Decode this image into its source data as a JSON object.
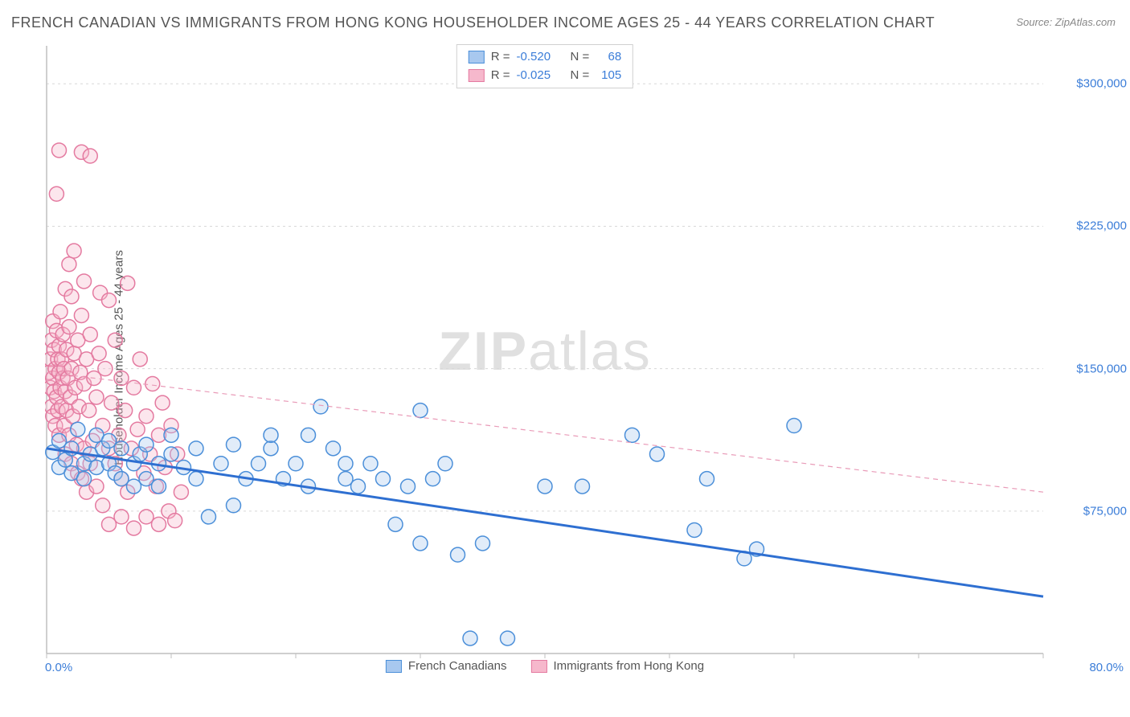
{
  "title": "FRENCH CANADIAN VS IMMIGRANTS FROM HONG KONG HOUSEHOLDER INCOME AGES 25 - 44 YEARS CORRELATION CHART",
  "source": "Source: ZipAtlas.com",
  "watermark_a": "ZIP",
  "watermark_b": "atlas",
  "y_axis_label": "Householder Income Ages 25 - 44 years",
  "chart": {
    "type": "scatter",
    "background_color": "#ffffff",
    "grid_color": "#d8d8d8",
    "axis_color": "#bfbfbf",
    "xlim": [
      0,
      80
    ],
    "ylim": [
      0,
      320000
    ],
    "x_ticks": [
      0,
      10,
      20,
      30,
      40,
      50,
      60,
      70,
      80
    ],
    "x_tick_labels": {
      "0": "0.0%",
      "80": "80.0%"
    },
    "y_ticks": [
      75000,
      150000,
      225000,
      300000
    ],
    "y_tick_labels": [
      "$75,000",
      "$150,000",
      "$225,000",
      "$300,000"
    ],
    "label_fontsize": 15,
    "label_color": "#3b7dd8",
    "marker_radius": 9,
    "marker_stroke_width": 1.5,
    "marker_fill_opacity": 0.35,
    "trendline_width_blue": 3,
    "trendline_width_pink": 1.2,
    "trendline_pink_dash": "6,5"
  },
  "series": [
    {
      "key": "french_canadians",
      "label": "French Canadians",
      "fill": "#a8c8ef",
      "stroke": "#4b8fd9",
      "trend_stroke": "#2e6fd1",
      "R": "-0.520",
      "N": "68",
      "trendline": {
        "x1": 0,
        "y1": 108000,
        "x2": 80,
        "y2": 30000
      },
      "points": [
        [
          0.5,
          106000
        ],
        [
          1,
          98000
        ],
        [
          1,
          112000
        ],
        [
          1.5,
          102000
        ],
        [
          2,
          108000
        ],
        [
          2,
          95000
        ],
        [
          2.5,
          118000
        ],
        [
          3,
          100000
        ],
        [
          3,
          92000
        ],
        [
          3.5,
          105000
        ],
        [
          4,
          115000
        ],
        [
          4,
          98000
        ],
        [
          4.5,
          108000
        ],
        [
          5,
          112000
        ],
        [
          5,
          100000
        ],
        [
          5.5,
          95000
        ],
        [
          6,
          108000
        ],
        [
          6,
          92000
        ],
        [
          7,
          100000
        ],
        [
          7,
          88000
        ],
        [
          7.5,
          105000
        ],
        [
          8,
          110000
        ],
        [
          8,
          92000
        ],
        [
          9,
          100000
        ],
        [
          9,
          88000
        ],
        [
          10,
          105000
        ],
        [
          10,
          115000
        ],
        [
          11,
          98000
        ],
        [
          12,
          108000
        ],
        [
          12,
          92000
        ],
        [
          13,
          72000
        ],
        [
          14,
          100000
        ],
        [
          15,
          110000
        ],
        [
          15,
          78000
        ],
        [
          16,
          92000
        ],
        [
          17,
          100000
        ],
        [
          18,
          108000
        ],
        [
          18,
          115000
        ],
        [
          19,
          92000
        ],
        [
          20,
          100000
        ],
        [
          21,
          115000
        ],
        [
          21,
          88000
        ],
        [
          22,
          130000
        ],
        [
          23,
          108000
        ],
        [
          24,
          92000
        ],
        [
          24,
          100000
        ],
        [
          25,
          88000
        ],
        [
          26,
          100000
        ],
        [
          27,
          92000
        ],
        [
          28,
          68000
        ],
        [
          29,
          88000
        ],
        [
          30,
          128000
        ],
        [
          30,
          58000
        ],
        [
          31,
          92000
        ],
        [
          32,
          100000
        ],
        [
          33,
          52000
        ],
        [
          34,
          8000
        ],
        [
          35,
          58000
        ],
        [
          37,
          8000
        ],
        [
          40,
          88000
        ],
        [
          43,
          88000
        ],
        [
          47,
          115000
        ],
        [
          49,
          105000
        ],
        [
          52,
          65000
        ],
        [
          53,
          92000
        ],
        [
          56,
          50000
        ],
        [
          57,
          55000
        ],
        [
          60,
          120000
        ]
      ]
    },
    {
      "key": "immigrants_hk",
      "label": "Immigrants from Hong Kong",
      "fill": "#f6b8cc",
      "stroke": "#e47aa0",
      "trend_stroke": "#e99bb8",
      "R": "-0.025",
      "N": "105",
      "trendline": {
        "x1": 0,
        "y1": 148000,
        "x2": 80,
        "y2": 85000
      },
      "points": [
        [
          0.2,
          148000
        ],
        [
          0.3,
          155000
        ],
        [
          0.3,
          140000
        ],
        [
          0.4,
          165000
        ],
        [
          0.4,
          130000
        ],
        [
          0.5,
          175000
        ],
        [
          0.5,
          125000
        ],
        [
          0.5,
          145000
        ],
        [
          0.6,
          160000
        ],
        [
          0.6,
          138000
        ],
        [
          0.7,
          150000
        ],
        [
          0.7,
          120000
        ],
        [
          0.8,
          170000
        ],
        [
          0.8,
          135000
        ],
        [
          0.8,
          242000
        ],
        [
          0.9,
          155000
        ],
        [
          0.9,
          128000
        ],
        [
          1,
          148000
        ],
        [
          1,
          162000
        ],
        [
          1,
          115000
        ],
        [
          1,
          265000
        ],
        [
          1.1,
          140000
        ],
        [
          1.1,
          180000
        ],
        [
          1.2,
          130000
        ],
        [
          1.2,
          155000
        ],
        [
          1.3,
          145000
        ],
        [
          1.3,
          168000
        ],
        [
          1.4,
          120000
        ],
        [
          1.4,
          150000
        ],
        [
          1.5,
          138000
        ],
        [
          1.5,
          192000
        ],
        [
          1.5,
          105000
        ],
        [
          1.6,
          160000
        ],
        [
          1.6,
          128000
        ],
        [
          1.7,
          145000
        ],
        [
          1.8,
          115000
        ],
        [
          1.8,
          172000
        ],
        [
          1.8,
          205000
        ],
        [
          1.9,
          135000
        ],
        [
          2,
          150000
        ],
        [
          2,
          100000
        ],
        [
          2,
          188000
        ],
        [
          2.1,
          125000
        ],
        [
          2.2,
          158000
        ],
        [
          2.2,
          212000
        ],
        [
          2.3,
          140000
        ],
        [
          2.4,
          110000
        ],
        [
          2.5,
          165000
        ],
        [
          2.5,
          95000
        ],
        [
          2.6,
          130000
        ],
        [
          2.7,
          148000
        ],
        [
          2.8,
          92000
        ],
        [
          2.8,
          178000
        ],
        [
          2.8,
          264000
        ],
        [
          3,
          142000
        ],
        [
          3,
          108000
        ],
        [
          3,
          196000
        ],
        [
          3.2,
          155000
        ],
        [
          3.2,
          85000
        ],
        [
          3.4,
          128000
        ],
        [
          3.5,
          168000
        ],
        [
          3.5,
          100000
        ],
        [
          3.5,
          262000
        ],
        [
          3.7,
          112000
        ],
        [
          3.8,
          145000
        ],
        [
          4,
          135000
        ],
        [
          4,
          88000
        ],
        [
          4.2,
          158000
        ],
        [
          4.3,
          190000
        ],
        [
          4.5,
          120000
        ],
        [
          4.5,
          78000
        ],
        [
          4.7,
          150000
        ],
        [
          5,
          108000
        ],
        [
          5,
          68000
        ],
        [
          5,
          186000
        ],
        [
          5.2,
          132000
        ],
        [
          5.5,
          100000
        ],
        [
          5.5,
          165000
        ],
        [
          5.8,
          115000
        ],
        [
          6,
          92000
        ],
        [
          6,
          145000
        ],
        [
          6,
          72000
        ],
        [
          6.3,
          128000
        ],
        [
          6.5,
          195000
        ],
        [
          6.5,
          85000
        ],
        [
          6.8,
          108000
        ],
        [
          7,
          140000
        ],
        [
          7,
          66000
        ],
        [
          7.3,
          118000
        ],
        [
          7.5,
          155000
        ],
        [
          7.8,
          95000
        ],
        [
          8,
          125000
        ],
        [
          8,
          72000
        ],
        [
          8.3,
          105000
        ],
        [
          8.5,
          142000
        ],
        [
          8.8,
          88000
        ],
        [
          9,
          115000
        ],
        [
          9,
          68000
        ],
        [
          9.3,
          132000
        ],
        [
          9.5,
          98000
        ],
        [
          9.8,
          75000
        ],
        [
          10,
          120000
        ],
        [
          10.3,
          70000
        ],
        [
          10.5,
          105000
        ],
        [
          10.8,
          85000
        ]
      ]
    }
  ],
  "legend_top": {
    "r_label": "R =",
    "n_label": "N ="
  }
}
